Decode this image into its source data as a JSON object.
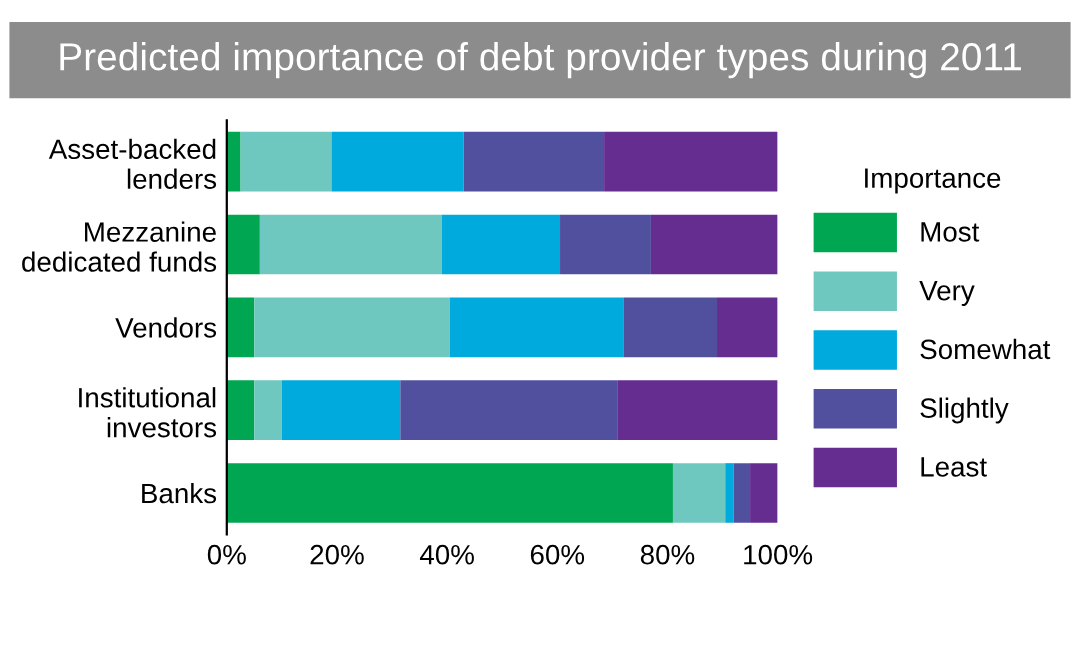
{
  "chart_data": {
    "type": "bar",
    "orientation": "horizontal",
    "stacked": true,
    "title": "Predicted importance of debt provider types during 2011",
    "categories": [
      "Asset-backed\nlenders",
      "Mezzanine\ndedicated funds",
      "Vendors",
      "Institutional\ninvestors",
      "Banks"
    ],
    "series": [
      {
        "name": "Most",
        "color": "#00a651",
        "values": [
          2.5,
          6,
          5,
          5,
          81
        ]
      },
      {
        "name": "Very",
        "color": "#6fc8bf",
        "values": [
          16.5,
          33,
          35.5,
          5,
          9.5
        ]
      },
      {
        "name": "Somewhat",
        "color": "#00aadc",
        "values": [
          24,
          21.5,
          31.5,
          21.5,
          1.5
        ]
      },
      {
        "name": "Slightly",
        "color": "#51509f",
        "values": [
          25.5,
          16.5,
          17,
          39.5,
          3
        ]
      },
      {
        "name": "Least",
        "color": "#662d91",
        "values": [
          31.5,
          23,
          11,
          29,
          5
        ]
      }
    ],
    "xlim": [
      0,
      100
    ],
    "xticks": [
      {
        "value": 0,
        "label": "0%"
      },
      {
        "value": 20,
        "label": "20%"
      },
      {
        "value": 40,
        "label": "40%"
      },
      {
        "value": 60,
        "label": "60%"
      },
      {
        "value": 80,
        "label": "80%"
      },
      {
        "value": 100,
        "label": "100%"
      }
    ],
    "legend": "right",
    "legend_title": "Importance",
    "grid": false
  }
}
